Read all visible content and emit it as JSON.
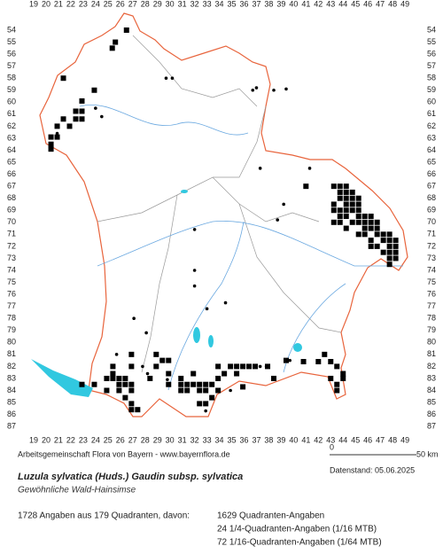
{
  "map": {
    "columns": [
      19,
      20,
      21,
      22,
      23,
      24,
      25,
      26,
      27,
      28,
      29,
      30,
      31,
      32,
      33,
      34,
      35,
      36,
      37,
      38,
      39,
      40,
      41,
      42,
      43,
      44,
      45,
      46,
      47,
      48,
      49
    ],
    "rows": [
      54,
      55,
      56,
      57,
      58,
      59,
      60,
      61,
      62,
      63,
      64,
      65,
      66,
      67,
      68,
      69,
      70,
      71,
      72,
      73,
      74,
      75,
      76,
      77,
      78,
      79,
      80,
      81,
      82,
      83,
      84,
      85,
      86,
      87
    ],
    "squares": [
      [
        26.5,
        54
      ],
      [
        25.6,
        55
      ],
      [
        25.35,
        55.5
      ],
      [
        21.4,
        58
      ],
      [
        22.9,
        59.9
      ],
      [
        23.9,
        59
      ],
      [
        22.4,
        60.75
      ],
      [
        22.9,
        60.75
      ],
      [
        22.9,
        61.4
      ],
      [
        22.4,
        61.4
      ],
      [
        21.4,
        61.4
      ],
      [
        21.9,
        62
      ],
      [
        20.9,
        62
      ],
      [
        20.4,
        62.9
      ],
      [
        20.9,
        62.9
      ],
      [
        20.4,
        63.5
      ],
      [
        20.4,
        63.9
      ],
      [
        41,
        67
      ],
      [
        43.25,
        67
      ],
      [
        43.75,
        67
      ],
      [
        44.25,
        67
      ],
      [
        43.75,
        67.5
      ],
      [
        44.25,
        67.5
      ],
      [
        44.75,
        67.5
      ],
      [
        43.75,
        68
      ],
      [
        44.25,
        68
      ],
      [
        44.75,
        68
      ],
      [
        45.25,
        68
      ],
      [
        43.25,
        68.5
      ],
      [
        44.25,
        68.5
      ],
      [
        44.75,
        68.5
      ],
      [
        45.25,
        68.5
      ],
      [
        43.25,
        69
      ],
      [
        43.75,
        69
      ],
      [
        44.25,
        69
      ],
      [
        44.75,
        69
      ],
      [
        45.25,
        69
      ],
      [
        43.75,
        69.5
      ],
      [
        44.25,
        69.5
      ],
      [
        45.25,
        69.5
      ],
      [
        45.75,
        69.5
      ],
      [
        46.25,
        69.5
      ],
      [
        43.25,
        70
      ],
      [
        43.75,
        70
      ],
      [
        44.75,
        70
      ],
      [
        45.25,
        70
      ],
      [
        45.75,
        70
      ],
      [
        46.25,
        70
      ],
      [
        46.75,
        70
      ],
      [
        44.25,
        70.5
      ],
      [
        45.75,
        70.5
      ],
      [
        46.25,
        70.5
      ],
      [
        46.75,
        70.5
      ],
      [
        45.25,
        71
      ],
      [
        45.75,
        71
      ],
      [
        46.75,
        71
      ],
      [
        47.25,
        71
      ],
      [
        47.75,
        71
      ],
      [
        46.25,
        71.5
      ],
      [
        47.25,
        71.5
      ],
      [
        47.75,
        71.5
      ],
      [
        48.25,
        71.5
      ],
      [
        46.25,
        72
      ],
      [
        46.75,
        72
      ],
      [
        47.75,
        72
      ],
      [
        48.25,
        72
      ],
      [
        47.25,
        72.5
      ],
      [
        47.75,
        72.5
      ],
      [
        48.25,
        72.5
      ],
      [
        47.75,
        73
      ],
      [
        48.25,
        73
      ],
      [
        47.75,
        73.5
      ],
      [
        25.4,
        82
      ],
      [
        25.4,
        82.6
      ],
      [
        24.9,
        83
      ],
      [
        25.4,
        83
      ],
      [
        25.9,
        83
      ],
      [
        26.4,
        83
      ],
      [
        25.9,
        83.5
      ],
      [
        26.4,
        83.5
      ],
      [
        26.9,
        83.5
      ],
      [
        24.9,
        84
      ],
      [
        25.9,
        84
      ],
      [
        26.9,
        84
      ],
      [
        23.9,
        83.5
      ],
      [
        22.9,
        83.5
      ],
      [
        26.4,
        84.6
      ],
      [
        26.9,
        85.1
      ],
      [
        26.9,
        85.6
      ],
      [
        27.4,
        85.6
      ],
      [
        26.9,
        81
      ],
      [
        26.9,
        82
      ],
      [
        28.4,
        83
      ],
      [
        28.9,
        82
      ],
      [
        29.4,
        81.5
      ],
      [
        28.9,
        81
      ],
      [
        29.9,
        81.5
      ],
      [
        29.9,
        82.6
      ],
      [
        29.9,
        83.5
      ],
      [
        30.9,
        83
      ],
      [
        30.9,
        83.5
      ],
      [
        31.4,
        83.5
      ],
      [
        31.9,
        83.5
      ],
      [
        32.4,
        83.5
      ],
      [
        32.9,
        83.5
      ],
      [
        33.4,
        83.5
      ],
      [
        30.9,
        84
      ],
      [
        31.4,
        84
      ],
      [
        32.4,
        84
      ],
      [
        32.9,
        84
      ],
      [
        32.4,
        85.1
      ],
      [
        32.9,
        85.1
      ],
      [
        33.4,
        84.6
      ],
      [
        31.9,
        82.6
      ],
      [
        33.9,
        83
      ],
      [
        33.9,
        84
      ],
      [
        34.4,
        82.6
      ],
      [
        33.9,
        82
      ],
      [
        34.9,
        82
      ],
      [
        35.4,
        82
      ],
      [
        35.9,
        82
      ],
      [
        36.4,
        82
      ],
      [
        36.9,
        82
      ],
      [
        35.4,
        82.6
      ],
      [
        37.9,
        82
      ],
      [
        35.9,
        83.7
      ],
      [
        38.4,
        83
      ],
      [
        39.4,
        81.5
      ],
      [
        40.8,
        81.6
      ],
      [
        42,
        81.6
      ],
      [
        42.5,
        81
      ],
      [
        43,
        81.6
      ],
      [
        43.5,
        82
      ],
      [
        44,
        82.6
      ],
      [
        44,
        83
      ],
      [
        43,
        83
      ],
      [
        43.5,
        83.5
      ],
      [
        43.5,
        84
      ]
    ],
    "dots": [
      [
        20.9,
        62.6
      ],
      [
        24,
        60.5
      ],
      [
        24.5,
        61.2
      ],
      [
        29.7,
        58
      ],
      [
        30.2,
        58
      ],
      [
        36.7,
        59
      ],
      [
        37,
        58.8
      ],
      [
        38.4,
        59
      ],
      [
        39.4,
        58.9
      ],
      [
        37.3,
        65.5
      ],
      [
        41.3,
        65.5
      ],
      [
        39.2,
        68.5
      ],
      [
        38.7,
        69.8
      ],
      [
        32,
        70.6
      ],
      [
        32,
        74
      ],
      [
        32,
        75.3
      ],
      [
        33,
        77.2
      ],
      [
        34.5,
        76.7
      ],
      [
        27.1,
        78
      ],
      [
        28.1,
        79.2
      ],
      [
        25.7,
        81
      ],
      [
        27.8,
        82
      ],
      [
        28.2,
        82.6
      ],
      [
        29.3,
        81.5
      ],
      [
        29.8,
        83.1
      ],
      [
        32.9,
        85.7
      ],
      [
        34.9,
        84
      ],
      [
        37.3,
        82
      ],
      [
        37.8,
        82
      ],
      [
        39.7,
        81.5
      ]
    ],
    "lakes": [],
    "credit": "Arbeitsgemeinschaft Flora von Bayern - www.bayernflora.de",
    "scale": [
      "0",
      "50 km"
    ],
    "date": "Datenstand: 05.06.2025",
    "title": "Luzula sylvatica (Huds.) Gaudin subsp. sylvatica",
    "subtitle": "Gewöhnliche Wald-Hainsimse",
    "summary": "1728 Angaben aus 179 Quadranten, davon:",
    "details": [
      "1629 Quadranten-Angaben",
      "24 1/4-Quadranten-Angaben (1/16 MTB)",
      "72 1/16-Quadranten-Angaben (1/64 MTB)"
    ]
  }
}
